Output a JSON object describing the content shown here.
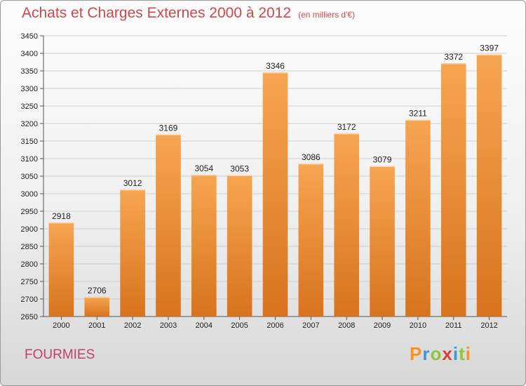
{
  "title": "Achats et Charges Externes 2000 à 2012",
  "unit_note": "(en milliers d'€)",
  "location": "FOURMIES",
  "brand": {
    "letters": [
      "P",
      "r",
      "o",
      "x",
      "i",
      "t",
      "i"
    ],
    "colors": [
      "#f7941d",
      "#3a9ad9",
      "#8dc63f",
      "#e03b3b",
      "#3a9ad9",
      "#8dc63f",
      "#f7941d"
    ]
  },
  "colors": {
    "bar_top": "#f7a552",
    "bar_bottom": "#d8731c",
    "title": "#d0464a",
    "location": "#c2406f",
    "grid": "#cfcfcf"
  },
  "chart_data": {
    "type": "bar",
    "title": "Achats et Charges Externes 2000 à 2012",
    "categories": [
      "2000",
      "2001",
      "2002",
      "2003",
      "2004",
      "2005",
      "2006",
      "2007",
      "2008",
      "2009",
      "2010",
      "2011",
      "2012"
    ],
    "values": [
      2918,
      2706,
      3012,
      3169,
      3054,
      3053,
      3346,
      3086,
      3172,
      3079,
      3211,
      3372,
      3397
    ],
    "ylim": [
      2650,
      3450
    ],
    "yticks": [
      2650,
      2700,
      2750,
      2800,
      2850,
      2900,
      2950,
      3000,
      3050,
      3100,
      3150,
      3200,
      3250,
      3300,
      3350,
      3400,
      3450
    ],
    "grid": true,
    "legend": "none"
  }
}
